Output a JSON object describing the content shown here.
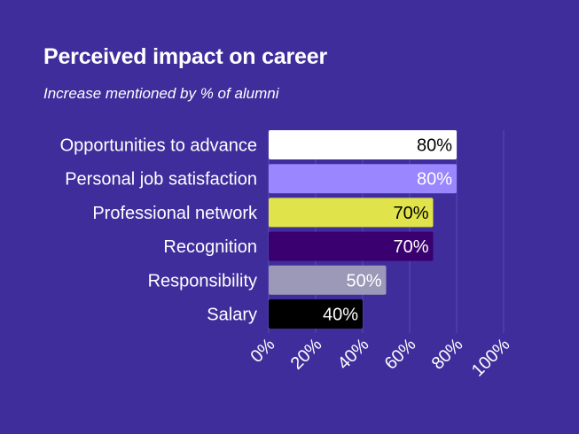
{
  "chart_data": {
    "type": "bar",
    "orientation": "horizontal",
    "title": "Perceived impact on career",
    "subtitle": "Increase mentioned by % of alumni",
    "categories": [
      "Opportunities to advance",
      "Personal job satisfaction",
      "Professional network",
      "Recognition",
      "Responsibility",
      "Salary"
    ],
    "values": [
      80,
      80,
      70,
      70,
      50,
      40
    ],
    "data_labels": [
      "80%",
      "80%",
      "70%",
      "70%",
      "50%",
      "40%"
    ],
    "bar_colors": [
      "#ffffff",
      "#9a86ff",
      "#e0e34a",
      "#3a0070",
      "#9b98b8",
      "#000000"
    ],
    "label_colors": [
      "#000000",
      "#ffffff",
      "#000000",
      "#ffffff",
      "#ffffff",
      "#ffffff"
    ],
    "xlim": [
      0,
      100
    ],
    "xticks": [
      0,
      20,
      40,
      60,
      80,
      100
    ],
    "xtick_labels": [
      "0%",
      "20%",
      "40%",
      "60%",
      "80%",
      "100%"
    ],
    "grid": true,
    "legend": "none"
  },
  "colors": {
    "background": "#3f2d9c",
    "gridline": "#5a4bb0",
    "text": "#ffffff"
  }
}
